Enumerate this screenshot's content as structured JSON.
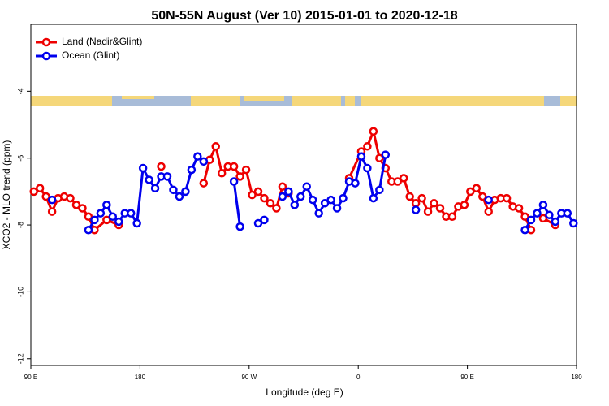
{
  "chart_data": {
    "type": "line",
    "title": "50N-55N August (Ver 10)   2015-01-01 to 2020-12-18",
    "xlabel": "Longitude (deg E)",
    "ylabel": "XCO2 - MLO trend (ppm)",
    "xlim": [
      90,
      540
    ],
    "xticks": [
      {
        "value": 90,
        "label": "90 E"
      },
      {
        "value": 180,
        "label": "180"
      },
      {
        "value": 270,
        "label": "90 W"
      },
      {
        "value": 360,
        "label": "0"
      },
      {
        "value": 450,
        "label": "90 E"
      },
      {
        "value": 540,
        "label": "180"
      }
    ],
    "ylim": [
      -12.2,
      -2
    ],
    "yticks": [
      -4,
      -6,
      -8,
      -10,
      -12
    ],
    "legend": "top-left",
    "series": [
      {
        "name": "Land (Nadir&Glint)",
        "color": "#ee0000",
        "x": [
          92.5,
          97.5,
          102.5,
          107.5,
          112.5,
          117.5,
          122.5,
          127.5,
          132.5,
          137.5,
          142.5,
          152.5,
          162.5,
          null,
          197.5,
          null,
          232.5,
          237.5,
          242.5,
          247.5,
          252.5,
          257.5,
          262.5,
          267.5,
          272.5,
          277.5,
          282.5,
          287.5,
          292.5,
          297.5,
          302.5,
          null,
          352.5,
          362.5,
          367.5,
          372.5,
          377.5,
          382.5,
          387.5,
          392.5,
          397.5,
          402.5,
          407.5,
          412.5,
          417.5,
          422.5,
          427.5,
          432.5,
          437.5,
          442.5,
          447.5,
          452.5,
          457.5,
          462.5,
          467.5,
          472.5,
          477.5,
          482.5,
          487.5,
          492.5,
          497.5,
          502.5,
          null,
          512.5,
          522.5
        ],
        "values": [
          -7.0,
          -6.9,
          -7.15,
          -7.6,
          -7.2,
          -7.15,
          -7.2,
          -7.4,
          -7.5,
          -7.75,
          -8.15,
          -7.85,
          -8.0,
          null,
          -6.25,
          null,
          -6.75,
          -6.05,
          -5.65,
          -6.45,
          -6.25,
          -6.25,
          -6.55,
          -6.35,
          -7.1,
          -7.0,
          -7.2,
          -7.35,
          -7.5,
          -6.85,
          -7.05,
          null,
          -6.6,
          -5.8,
          -5.65,
          -5.2,
          -6.0,
          -6.3,
          -6.7,
          -6.7,
          -6.6,
          -7.15,
          -7.35,
          -7.2,
          -7.6,
          -7.35,
          -7.5,
          -7.75,
          -7.75,
          -7.45,
          -7.4,
          -7.0,
          -6.9,
          -7.15,
          -7.6,
          -7.25,
          -7.2,
          -7.2,
          -7.45,
          -7.5,
          -7.75,
          -8.15,
          null,
          -7.8,
          -8.0
        ]
      },
      {
        "name": "Ocean (Glint)",
        "color": "#0000ee",
        "x": [
          107.5,
          null,
          137.5,
          142.5,
          147.5,
          152.5,
          157.5,
          162.5,
          167.5,
          172.5,
          177.5,
          182.5,
          187.5,
          192.5,
          197.5,
          202.5,
          207.5,
          212.5,
          217.5,
          222.5,
          227.5,
          232.5,
          null,
          257.5,
          262.5,
          null,
          277.5,
          282.5,
          null,
          297.5,
          302.5,
          307.5,
          312.5,
          317.5,
          322.5,
          327.5,
          332.5,
          337.5,
          342.5,
          347.5,
          352.5,
          357.5,
          362.5,
          367.5,
          372.5,
          377.5,
          382.5,
          null,
          407.5,
          null,
          467.5,
          null,
          497.5,
          502.5,
          507.5,
          512.5,
          517.5,
          522.5,
          527.5,
          532.5,
          537.5
        ],
        "values": [
          -7.25,
          null,
          -8.15,
          -7.85,
          -7.65,
          -7.4,
          -7.75,
          -7.9,
          -7.65,
          -7.65,
          -7.95,
          -6.3,
          -6.65,
          -6.9,
          -6.55,
          -6.55,
          -6.95,
          -7.15,
          -7.0,
          -6.35,
          -5.95,
          -6.1,
          null,
          -6.7,
          -8.05,
          null,
          -7.95,
          -7.85,
          null,
          -7.15,
          -7.0,
          -7.4,
          -7.15,
          -6.85,
          -7.25,
          -7.65,
          -7.35,
          -7.25,
          -7.5,
          -7.2,
          -6.7,
          -6.75,
          -5.95,
          -6.3,
          -7.2,
          -6.95,
          -5.9,
          null,
          -7.55,
          null,
          -7.25,
          null,
          -8.15,
          -7.85,
          -7.65,
          -7.4,
          -7.7,
          -7.9,
          -7.65,
          -7.65,
          -7.95
        ]
      }
    ]
  }
}
